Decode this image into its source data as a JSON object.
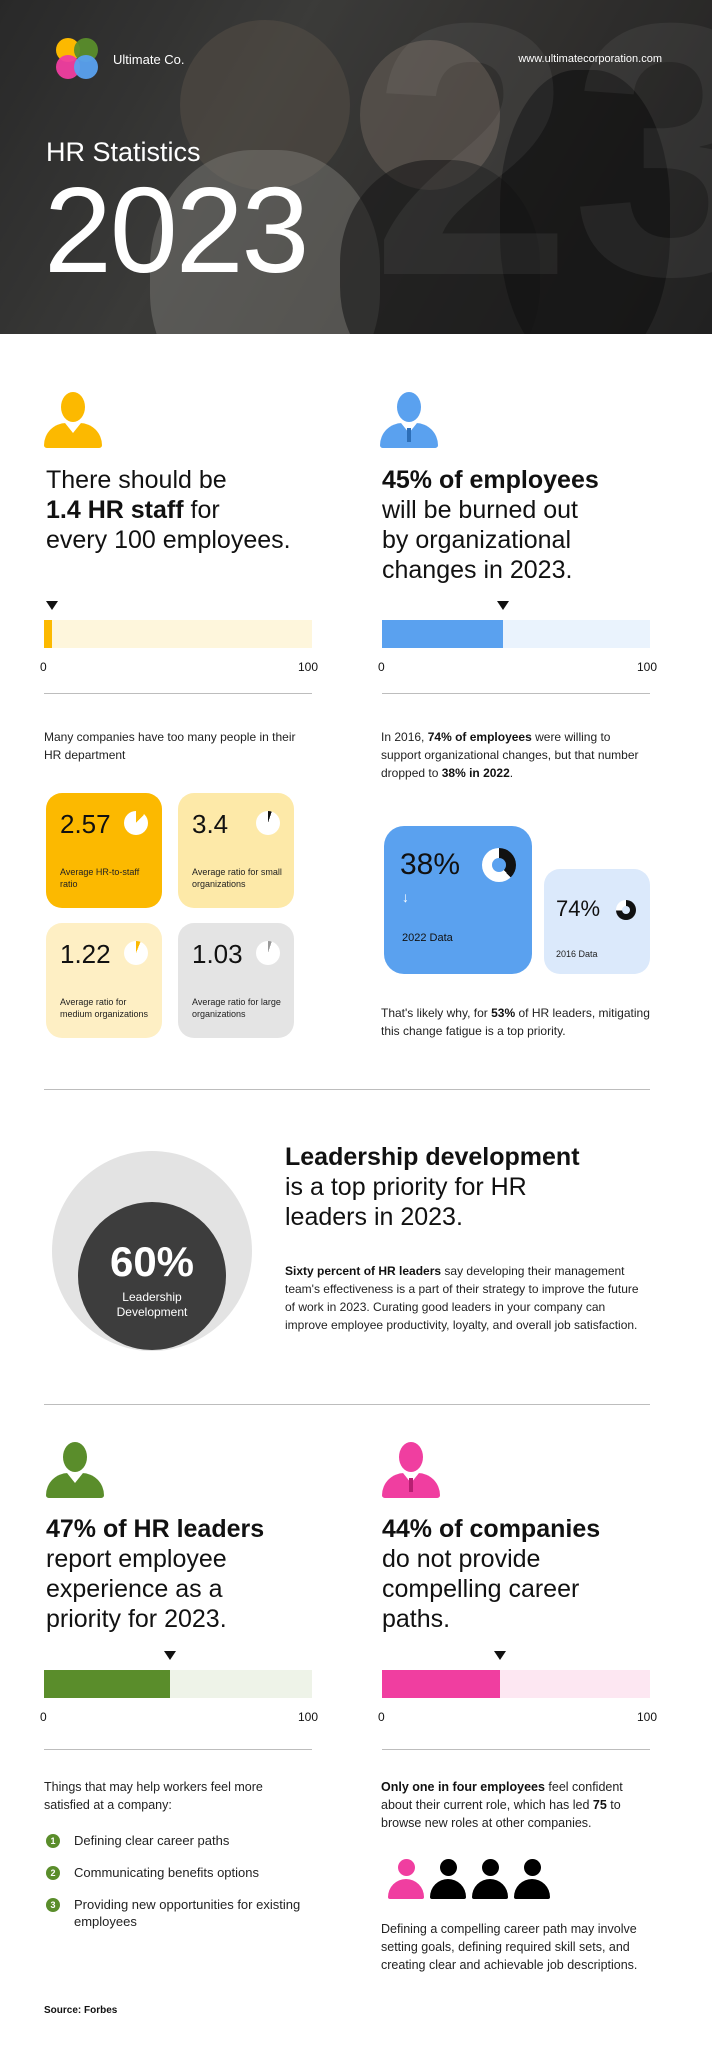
{
  "header": {
    "brand": "Ultimate Co.",
    "url": "www.ultimatecorporation.com",
    "subtitle": "HR Statistics",
    "year": "2023"
  },
  "colors": {
    "yellow": "#fcb900",
    "yellow_light": "#fef6dc",
    "blue": "#5aa1ef",
    "blue_light": "#eaf3fd",
    "green": "#5a8d2b",
    "green_light": "#eef3e8",
    "pink": "#f03ea0",
    "pink_light": "#fde7f2"
  },
  "section1": {
    "left": {
      "icon": "person-icon",
      "headline_line1": "There should be",
      "headline_bold": "1.4 HR staff",
      "headline_rest": " for",
      "headline_line3": "every 100 employees.",
      "bar_value": 1.4,
      "bar_min": "0",
      "bar_max": "100",
      "description": "Many companies have too many people in their HR department",
      "cards": [
        {
          "value": "2.57",
          "label": "Average HR-to-staff ratio"
        },
        {
          "value": "3.4",
          "label": "Average ratio for small organizations"
        },
        {
          "value": "1.22",
          "label": "Average ratio for medium organizations"
        },
        {
          "value": "1.03",
          "label": "Average ratio for large organizations"
        }
      ]
    },
    "right": {
      "icon": "person-with-tie-icon",
      "headline_bold": "45% of employees",
      "headline_line2": "will be burned out",
      "headline_line3": "by organizational",
      "headline_line4": "changes in 2023.",
      "bar_value": 45,
      "bar_min": "0",
      "bar_max": "100",
      "desc_pre": "In 2016, ",
      "desc_b1": "74% of employees",
      "desc_mid": " were willing to support organizational changes, but that number dropped to ",
      "desc_b2": "38% in 2022",
      "desc_end": ".",
      "card_2022": {
        "value": "38%",
        "label": "2022 Data",
        "arrow": "↓"
      },
      "card_2016": {
        "value": "74%",
        "label": "2016 Data"
      },
      "note_pre": "That's likely why, for ",
      "note_b": "53%",
      "note_end": " of HR leaders, mitigating this change fatigue is a top priority."
    }
  },
  "section2": {
    "circle_value": "60%",
    "circle_label_1": "Leadership",
    "circle_label_2": "Development",
    "headline_bold": "Leadership development",
    "headline_line2": "is a top priority for HR",
    "headline_line3": "leaders in 2023.",
    "desc_b": "Sixty percent of HR leaders",
    "desc_rest": " say developing their management team's effectiveness is a part of their strategy to improve the future of work in 2023. Curating good leaders in your company can improve employee productivity, loyalty, and overall job satisfaction."
  },
  "section3": {
    "left": {
      "icon": "person-icon",
      "headline_bold": "47% of HR leaders",
      "headline_line2": "report employee",
      "headline_line3": "experience as a",
      "headline_line4": "priority for 2023.",
      "bar_value": 47,
      "bar_min": "0",
      "bar_max": "100",
      "list_intro": "Things that may help workers feel more satisfied at a company:",
      "list": [
        {
          "num": "1",
          "text": "Defining clear career paths"
        },
        {
          "num": "2",
          "text": "Communicating benefits options"
        },
        {
          "num": "3",
          "text": "Providing new opportunities for existing employees"
        }
      ]
    },
    "right": {
      "icon": "person-with-tie-icon",
      "headline_bold": "44% of companies",
      "headline_line2": "do not provide",
      "headline_line3": "compelling career",
      "headline_line4": "paths.",
      "bar_value": 44,
      "bar_min": "0",
      "bar_max": "100",
      "desc_b": "Only one in four employees",
      "desc_mid": " feel confident about their current role, which has led ",
      "desc_b2": "75",
      "desc_end": " to browse new roles at other companies.",
      "people_highlighted": 1,
      "people_total": 4,
      "note": "Defining a compelling career path may involve setting goals, defining required skill sets, and creating clear and achievable job descriptions."
    }
  },
  "footer": {
    "source": "Source: Forbes"
  }
}
